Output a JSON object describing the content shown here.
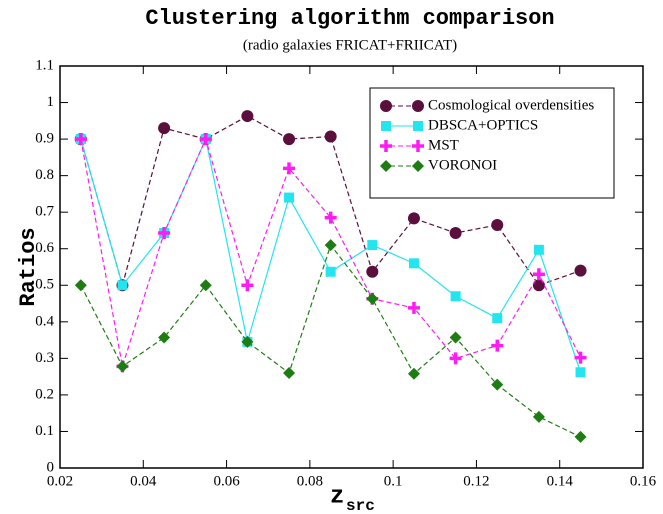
{
  "chart_data": {
    "type": "line",
    "title": "Clustering algorithm comparison",
    "subtitle": "(radio galaxies FRICAT+FRIICAT)",
    "x_label": "z",
    "x_label_sub": "src",
    "y_label": "Ratios",
    "x": [
      0.025,
      0.035,
      0.045,
      0.055,
      0.065,
      0.075,
      0.085,
      0.095,
      0.105,
      0.115,
      0.125,
      0.135,
      0.145
    ],
    "series": [
      {
        "name": "Cosmological overdensities",
        "color": "#5a0f3c",
        "marker": "circle",
        "dash": true,
        "values": [
          0.9,
          0.5,
          0.93,
          0.9,
          0.963,
          0.9,
          0.907,
          0.537,
          0.683,
          0.643,
          0.665,
          0.5,
          0.54
        ]
      },
      {
        "name": "DBSCA+OPTICS",
        "color": "#22e5ef",
        "marker": "square",
        "dash": false,
        "values": [
          0.9,
          0.5,
          0.643,
          0.9,
          0.345,
          0.74,
          0.537,
          0.61,
          0.56,
          0.47,
          0.41,
          0.597,
          0.262
        ]
      },
      {
        "name": "MST",
        "color": "#ff1cf2",
        "marker": "plus",
        "dash": true,
        "values": [
          0.9,
          0.278,
          0.643,
          0.9,
          0.5,
          0.82,
          0.685,
          0.463,
          0.438,
          0.3,
          0.335,
          0.53,
          0.302
        ]
      },
      {
        "name": "VORONOI",
        "color": "#1e7d12",
        "marker": "diamond",
        "dash": true,
        "values": [
          0.5,
          0.278,
          0.357,
          0.5,
          0.345,
          0.26,
          0.61,
          0.463,
          0.258,
          0.357,
          0.228,
          0.14,
          0.085
        ]
      }
    ],
    "xlim": [
      0.02,
      0.16
    ],
    "xticks": [
      0.02,
      0.04,
      0.06,
      0.08,
      0.1,
      0.12,
      0.14,
      0.16
    ],
    "ylim": [
      0,
      1.1
    ],
    "yticks": [
      0,
      0.1,
      0.2,
      0.3,
      0.4,
      0.5,
      0.6,
      0.7,
      0.8,
      0.9,
      1,
      1.1
    ],
    "legend": "upper right"
  }
}
